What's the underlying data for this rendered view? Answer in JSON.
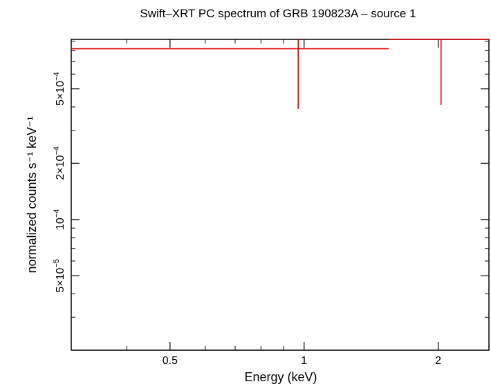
{
  "chart_data": {
    "type": "scatter",
    "title": "Swift–XRT PC spectrum of GRB 190823A – source 1",
    "xlabel": "Energy (keV)",
    "ylabel": "normalized counts s⁻¹ keV⁻¹",
    "x_scale": "log",
    "y_scale": "log",
    "xlim": [
      0.3,
      2.6
    ],
    "ylim": [
      2e-05,
      0.00092
    ],
    "x_ticks": [
      {
        "value": 0.5,
        "label": "0.5"
      },
      {
        "value": 1,
        "label": "1"
      },
      {
        "value": 2,
        "label": "2"
      }
    ],
    "y_ticks": [
      {
        "value": 5e-05,
        "mantissa": "5×10",
        "exp": "−5"
      },
      {
        "value": 0.0001,
        "mantissa": "10",
        "exp": "−4"
      },
      {
        "value": 0.0002,
        "mantissa": "2×10",
        "exp": "−4"
      },
      {
        "value": 0.0005,
        "mantissa": "5×10",
        "exp": "−4"
      }
    ],
    "series": [
      {
        "color": "#e00000",
        "points": [
          {
            "x": 0.97,
            "xlo": 0.3,
            "xhi": 1.55,
            "y": 0.00082,
            "ylo": 0.00039,
            "yhi": 0.00092
          },
          {
            "x": 2.03,
            "xlo": 1.55,
            "xhi": 2.6,
            "y": 0.00092,
            "ylo": 0.00041,
            "yhi": 0.00092
          }
        ]
      }
    ]
  }
}
